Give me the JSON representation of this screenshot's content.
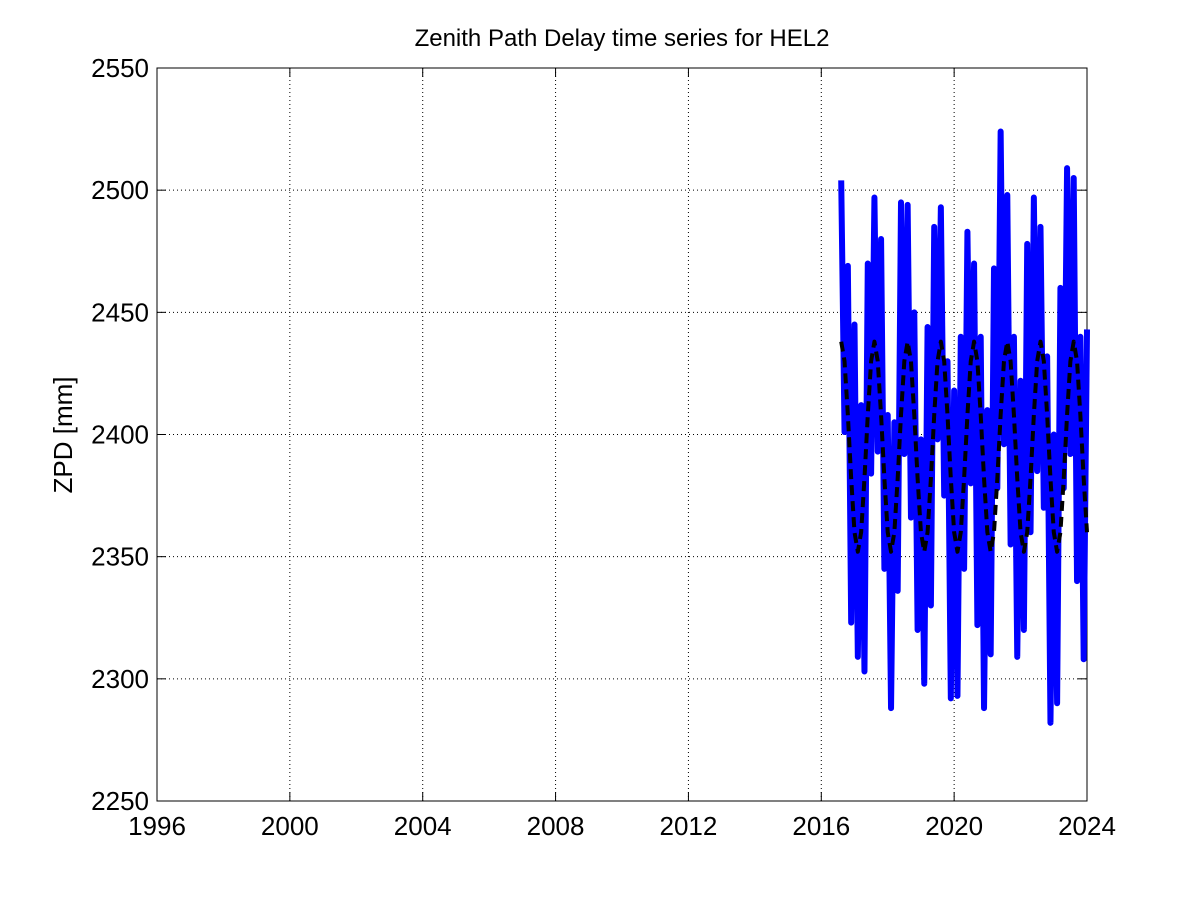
{
  "chart_data": {
    "type": "line",
    "title": "Zenith Path Delay time series for HEL2",
    "y_label": "ZPD [mm]",
    "x": [
      2016.6,
      2016.7,
      2016.8,
      2016.9,
      2017.0,
      2017.1,
      2017.2,
      2017.3,
      2017.4,
      2017.5,
      2017.6,
      2017.7,
      2017.8,
      2017.9,
      2018.0,
      2018.1,
      2018.2,
      2018.3,
      2018.4,
      2018.5,
      2018.6,
      2018.7,
      2018.8,
      2018.9,
      2019.0,
      2019.1,
      2019.2,
      2019.3,
      2019.4,
      2019.5,
      2019.6,
      2019.7,
      2019.8,
      2019.9,
      2020.0,
      2020.1,
      2020.2,
      2020.3,
      2020.4,
      2020.5,
      2020.6,
      2020.7,
      2020.8,
      2020.9,
      2021.0,
      2021.1,
      2021.2,
      2021.3,
      2021.4,
      2021.5,
      2021.6,
      2021.7,
      2021.8,
      2021.9,
      2022.0,
      2022.1,
      2022.2,
      2022.3,
      2022.4,
      2022.5,
      2022.6,
      2022.7,
      2022.8,
      2022.9,
      2023.0,
      2023.1,
      2023.2,
      2023.3,
      2023.4,
      2023.5,
      2023.6,
      2023.7,
      2023.8,
      2023.9,
      2024.0
    ],
    "series": [
      {
        "color": "#0000ff",
        "width": 6,
        "dash": false,
        "values": [
          2504,
          2401,
          2469,
          2323,
          2445,
          2309,
          2412,
          2303,
          2470,
          2384,
          2497,
          2393,
          2480,
          2345,
          2408,
          2288,
          2405,
          2336,
          2495,
          2392,
          2494,
          2366,
          2450,
          2320,
          2398,
          2298,
          2444,
          2330,
          2485,
          2398,
          2493,
          2375,
          2430,
          2292,
          2418,
          2293,
          2440,
          2345,
          2483,
          2380,
          2470,
          2322,
          2440,
          2288,
          2410,
          2310,
          2468,
          2378,
          2524,
          2396,
          2498,
          2355,
          2440,
          2309,
          2422,
          2320,
          2478,
          2360,
          2497,
          2385,
          2485,
          2370,
          2432,
          2282,
          2400,
          2290,
          2460,
          2378,
          2509,
          2392,
          2505,
          2340,
          2440,
          2308,
          2443
        ]
      },
      {
        "color": "#000000",
        "width": 4,
        "dash": true,
        "values": [
          2438,
          2430,
          2408,
          2382,
          2360,
          2352,
          2360,
          2382,
          2408,
          2430,
          2438,
          2430,
          2408,
          2382,
          2360,
          2352,
          2360,
          2382,
          2408,
          2430,
          2438,
          2430,
          2408,
          2382,
          2360,
          2352,
          2360,
          2382,
          2408,
          2430,
          2438,
          2430,
          2408,
          2382,
          2360,
          2352,
          2360,
          2382,
          2408,
          2430,
          2438,
          2430,
          2408,
          2382,
          2360,
          2352,
          2360,
          2382,
          2408,
          2430,
          2438,
          2430,
          2408,
          2382,
          2360,
          2352,
          2360,
          2382,
          2408,
          2430,
          2438,
          2430,
          2408,
          2382,
          2360,
          2352,
          2360,
          2382,
          2408,
          2430,
          2438,
          2430,
          2408,
          2382,
          2360
        ]
      }
    ],
    "xlim": [
      1996,
      2024
    ],
    "xticks": [
      1996,
      2000,
      2004,
      2008,
      2012,
      2016,
      2020,
      2024
    ],
    "ylim": [
      2250,
      2550
    ],
    "yticks": [
      2250,
      2300,
      2350,
      2400,
      2450,
      2500,
      2550
    ],
    "grid": true
  }
}
